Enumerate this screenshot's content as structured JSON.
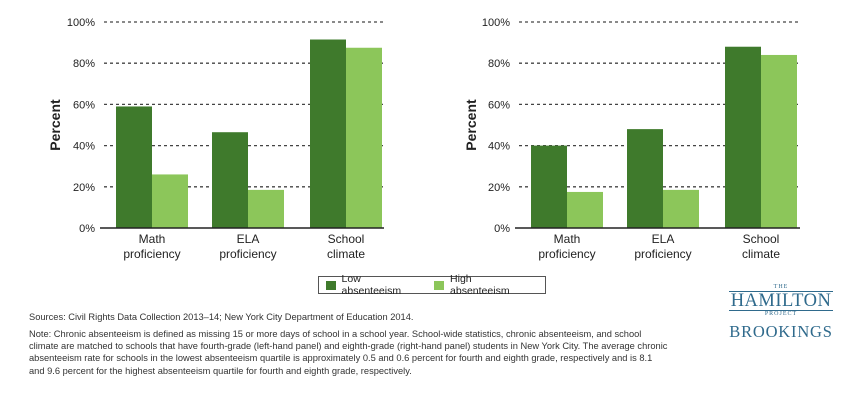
{
  "chart_data": [
    {
      "type": "bar",
      "panel": "left",
      "categories": [
        "Math proficiency",
        "ELA proficiency",
        "School climate"
      ],
      "category_lines": [
        [
          "Math",
          "proficiency"
        ],
        [
          "ELA",
          "proficiency"
        ],
        [
          "School",
          "climate"
        ]
      ],
      "series": [
        {
          "name": "Low absenteeism",
          "values": [
            59,
            46.5,
            91.5
          ]
        },
        {
          "name": "High absenteeism",
          "values": [
            26,
            18.5,
            87.5
          ]
        }
      ],
      "ylabel": "Percent",
      "ylim": [
        0,
        100
      ],
      "yticks": [
        "0%",
        "20%",
        "40%",
        "60%",
        "80%",
        "100%"
      ],
      "grid": true
    },
    {
      "type": "bar",
      "panel": "right",
      "categories": [
        "Math proficiency",
        "ELA proficiency",
        "School climate"
      ],
      "category_lines": [
        [
          "Math",
          "proficiency"
        ],
        [
          "ELA",
          "proficiency"
        ],
        [
          "School",
          "climate"
        ]
      ],
      "series": [
        {
          "name": "Low absenteeism",
          "values": [
            40,
            48,
            88
          ]
        },
        {
          "name": "High absenteeism",
          "values": [
            17.5,
            18.5,
            84
          ]
        }
      ],
      "ylabel": "Percent",
      "ylim": [
        0,
        100
      ],
      "yticks": [
        "0%",
        "20%",
        "40%",
        "60%",
        "80%",
        "100%"
      ],
      "grid": true
    }
  ],
  "colors": {
    "low": "#3f7a2c",
    "high": "#8cc65a",
    "logo": "#2f6a8c"
  },
  "legend": {
    "low_label": "Low absenteeism",
    "high_label": "High absenteeism"
  },
  "footer": {
    "sources": "Sources: Civil Rights Data Collection 2013–14; New York City Department of Education 2014.",
    "note": "Note: Chronic absenteeism is defined as missing 15 or more days of school in a school year. School-wide statistics, chronic absenteeism, and school climate are matched to schools that have fourth-grade (left-hand panel) and eighth-grade (right-hand panel) students in New York City. The average chronic absenteeism rate for schools in the lowest absenteeism quartile is approximately 0.5 and 0.6 percent for fourth and eighth grade, respectively and is 8.1 and 9.6 percent for the highest absenteeism quartile for fourth and eighth grade, respectively."
  },
  "logo": {
    "the": "THE",
    "hamilton": "HAMILTON",
    "project": "PROJECT",
    "brookings": "BROOKINGS"
  }
}
